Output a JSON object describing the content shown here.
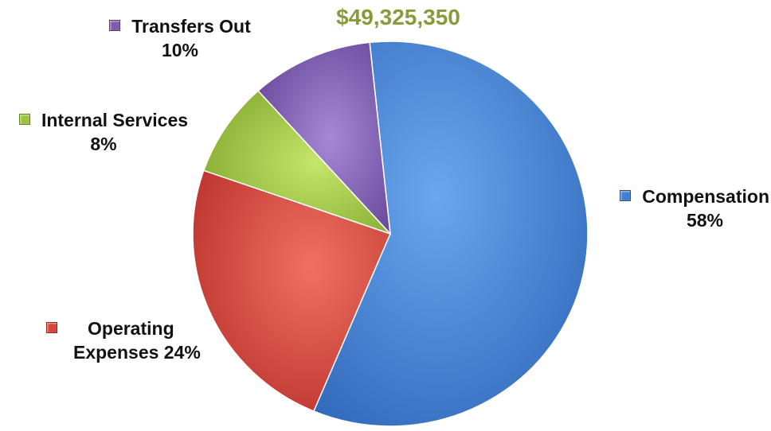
{
  "chart_data": {
    "type": "pie",
    "title": "$49,325,350",
    "slices": [
      {
        "name": "Compensation",
        "value": 58,
        "label": "58%",
        "color": "#3f7fd2"
      },
      {
        "name": "Operating Expenses",
        "value": 24,
        "label": "24%",
        "color": "#d9443d"
      },
      {
        "name": "Internal Services",
        "value": 8,
        "label": "8%",
        "color": "#9cc63a"
      },
      {
        "name": "Transfers Out",
        "value": 10,
        "label": "10%",
        "color": "#7d5bb0"
      }
    ]
  },
  "labels": {
    "transfers_name": "Transfers Out",
    "transfers_pct": "10%",
    "internal_name": "Internal Services",
    "internal_pct": "8%",
    "compensation_name": "Compensation",
    "compensation_pct": "58%",
    "operating_name": "Operating",
    "operating_rest": "Expenses 24%"
  }
}
